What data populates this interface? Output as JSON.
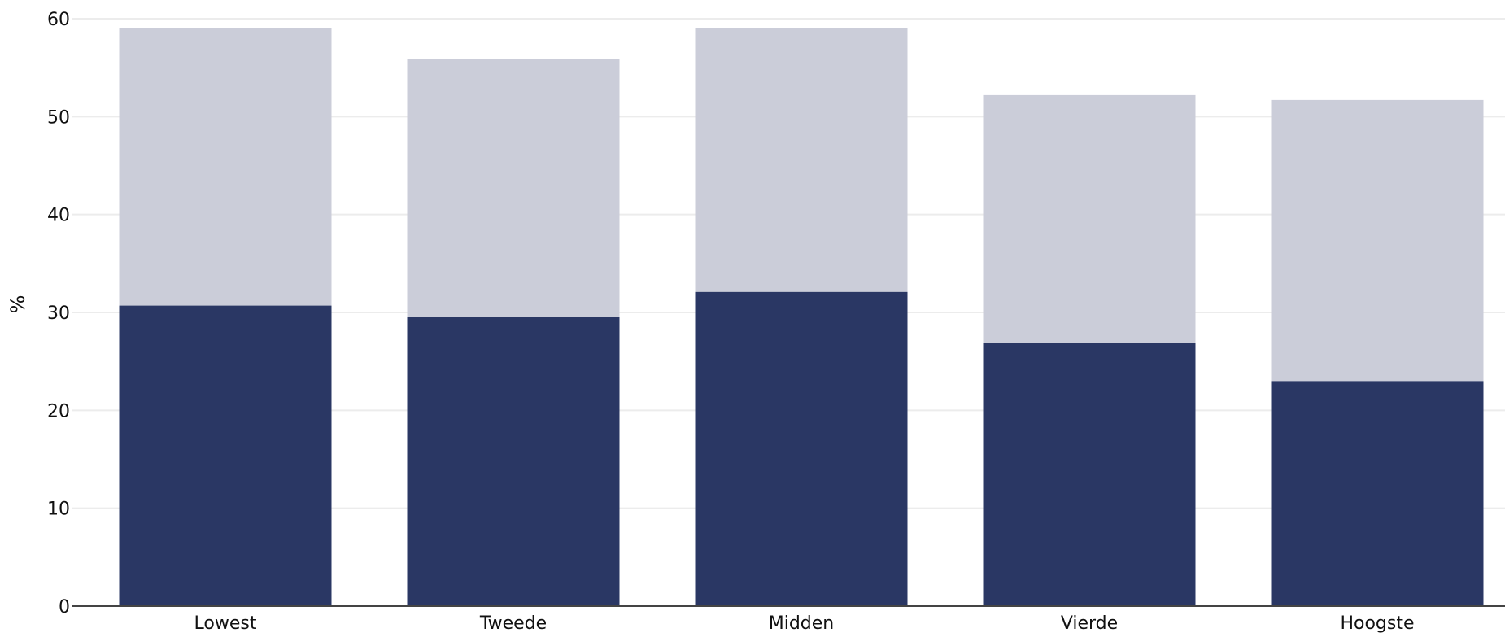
{
  "chart_data": {
    "type": "bar",
    "stacked": true,
    "title": "",
    "xlabel": "",
    "ylabel": "%",
    "ylim": [
      0,
      60
    ],
    "yticks": [
      0,
      10,
      20,
      30,
      40,
      50,
      60
    ],
    "grid": true,
    "legend": "none",
    "categories": [
      "Lowest",
      "Tweede",
      "Midden",
      "Vierde",
      "Hoogste"
    ],
    "series": [
      {
        "values": [
          30.7,
          29.5,
          32.1,
          26.9,
          23.0
        ],
        "color": "#2a3764"
      },
      {
        "values": [
          28.3,
          26.4,
          26.9,
          25.3,
          28.7
        ],
        "color": "#cacccd"
      }
    ],
    "colors": {
      "dark": "#2a3764",
      "light": "#cbcdd9",
      "grid": "#ececec",
      "axis": "#444444"
    }
  }
}
